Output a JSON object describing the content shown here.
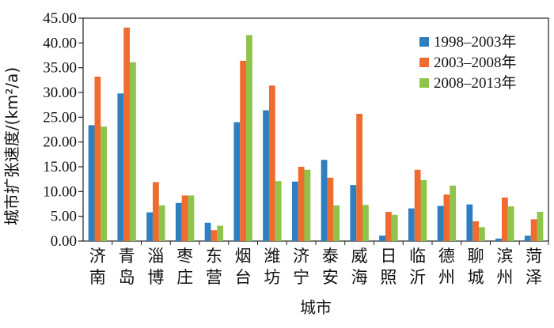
{
  "chart_data": {
    "type": "bar",
    "ylabel": "城市扩张速度/(km²/a)",
    "xlabel": "城市",
    "ylim": [
      0,
      45
    ],
    "yticks": [
      "0.00",
      "5.00",
      "10.00",
      "15.00",
      "20.00",
      "25.00",
      "30.00",
      "35.00",
      "40.00",
      "45.00"
    ],
    "categories": [
      "济南",
      "青岛",
      "淄博",
      "枣庄",
      "东营",
      "烟台",
      "潍坊",
      "济宁",
      "泰安",
      "威海",
      "日照",
      "临沂",
      "德州",
      "聊城",
      "滨州",
      "菏泽"
    ],
    "series": [
      {
        "name": "1998–2003年",
        "color": "#2e7fc2",
        "values": [
          23.4,
          29.8,
          5.8,
          7.7,
          3.7,
          24.0,
          26.4,
          12.0,
          16.4,
          11.3,
          1.1,
          6.6,
          7.1,
          7.4,
          0.5,
          1.1
        ]
      },
      {
        "name": "2003–2008年",
        "color": "#ef6c2e",
        "values": [
          33.2,
          43.1,
          11.9,
          9.2,
          2.2,
          36.4,
          31.4,
          15.0,
          12.8,
          25.7,
          5.9,
          14.4,
          9.4,
          4.0,
          8.8,
          4.4
        ]
      },
      {
        "name": "2008–2013年",
        "color": "#8fc34a",
        "values": [
          23.1,
          36.1,
          7.2,
          9.2,
          3.1,
          41.6,
          12.1,
          14.4,
          7.2,
          7.3,
          5.3,
          12.3,
          11.2,
          2.8,
          7.0,
          5.9
        ]
      }
    ],
    "grid": false,
    "legend_position": "top-right"
  }
}
